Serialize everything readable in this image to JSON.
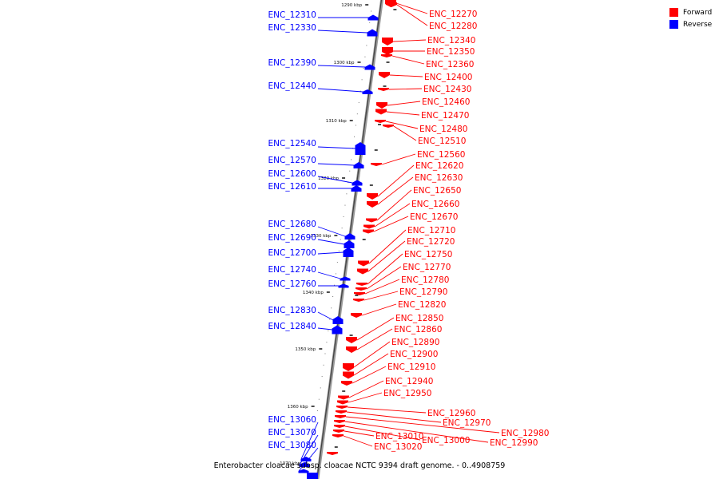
{
  "legend": {
    "forward_label": "Forward",
    "reverse_label": "Reverse",
    "forward_color": "#ff0000",
    "reverse_color": "#0000ff"
  },
  "caption": "Enterobacter cloacae subsp. cloacae NCTC 9394 draft genome. - 0..4908759",
  "ticks": [
    "1290 kbp",
    "1300 kbp",
    "1310 kbp",
    "1320 kbp",
    "1330 kbp",
    "1340 kbp",
    "1350 kbp",
    "1360 kbp",
    "1370 kbp"
  ],
  "reverse_genes": [
    "ENC_12310",
    "ENC_12330",
    "ENC_12390",
    "ENC_12440",
    "ENC_12540",
    "ENC_12570",
    "ENC_12600",
    "ENC_12610",
    "ENC_12680",
    "ENC_12690",
    "ENC_12700",
    "ENC_12740",
    "ENC_12760",
    "ENC_12830",
    "ENC_12840",
    "ENC_13060",
    "ENC_13070",
    "ENC_13080"
  ],
  "forward_genes": [
    "ENC_12270",
    "ENC_12280",
    "ENC_12340",
    "ENC_12350",
    "ENC_12360",
    "ENC_12400",
    "ENC_12430",
    "ENC_12460",
    "ENC_12470",
    "ENC_12480",
    "ENC_12510",
    "ENC_12560",
    "ENC_12620",
    "ENC_12630",
    "ENC_12650",
    "ENC_12660",
    "ENC_12670",
    "ENC_12710",
    "ENC_12720",
    "ENC_12750",
    "ENC_12770",
    "ENC_12780",
    "ENC_12790",
    "ENC_12820",
    "ENC_12850",
    "ENC_12860",
    "ENC_12890",
    "ENC_12900",
    "ENC_12910",
    "ENC_12940",
    "ENC_12950",
    "ENC_12960",
    "ENC_12970",
    "ENC_12980",
    "ENC_12990",
    "ENC_13000",
    "ENC_13010",
    "ENC_13020"
  ]
}
